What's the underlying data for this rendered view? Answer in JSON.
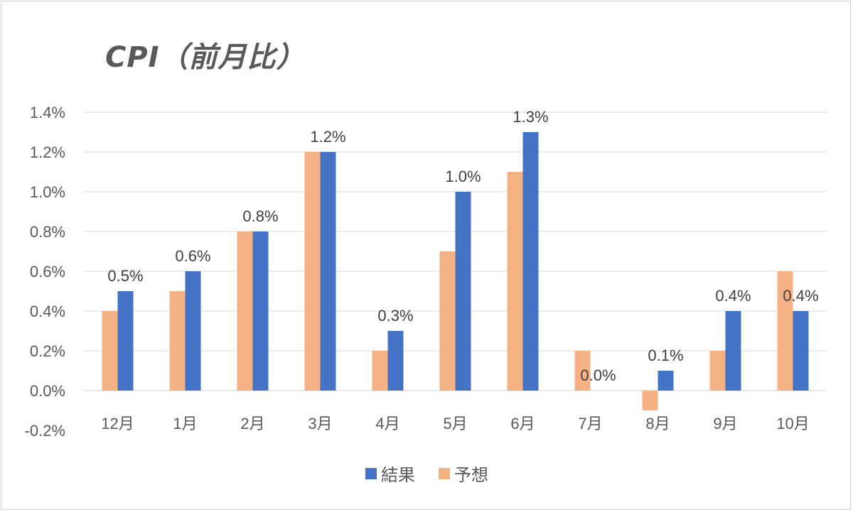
{
  "chart_data": {
    "type": "bar",
    "title": "CPI（前月比）",
    "categories": [
      "12月",
      "1月",
      "2月",
      "3月",
      "4月",
      "5月",
      "6月",
      "7月",
      "8月",
      "9月",
      "10月"
    ],
    "series": [
      {
        "name": "予想",
        "color": "#F4B183",
        "values": [
          0.4,
          0.5,
          0.8,
          1.2,
          0.2,
          0.7,
          1.1,
          0.2,
          -0.1,
          0.2,
          0.6
        ]
      },
      {
        "name": "結果",
        "color": "#4472C4",
        "values": [
          0.5,
          0.6,
          0.8,
          1.2,
          0.3,
          1.0,
          1.3,
          0.0,
          0.1,
          0.4,
          0.4
        ]
      }
    ],
    "data_labels": [
      "0.5%",
      "0.6%",
      "0.8%",
      "1.2%",
      "0.3%",
      "1.0%",
      "1.3%",
      "0.0%",
      "0.1%",
      "0.4%",
      "0.4%"
    ],
    "y_ticks": [
      "1.4%",
      "1.2%",
      "1.0%",
      "0.8%",
      "0.6%",
      "0.4%",
      "0.2%",
      "0.0%",
      "-0.2%"
    ],
    "ylim": [
      -0.2,
      1.4
    ],
    "grid": true,
    "legend": {
      "position": "bottom",
      "order": [
        "結果",
        "予想"
      ]
    }
  }
}
